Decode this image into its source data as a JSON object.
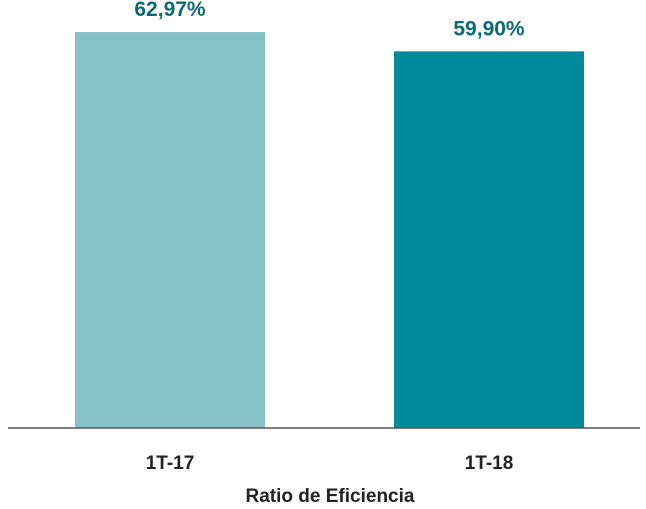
{
  "chart_data": {
    "type": "bar",
    "categories": [
      "1T-17",
      "1T-18"
    ],
    "values": [
      62.97,
      59.9
    ],
    "data_labels": [
      "62,97%",
      "59,90%"
    ],
    "xlabel": "Ratio de Eficiencia",
    "ylim": [
      0,
      66
    ],
    "grid": false,
    "legend": "none",
    "colors": {
      "bars": [
        "#85C2C9",
        "#008A9A"
      ],
      "labels": "#0B6A73",
      "axis": "#555555",
      "text": "#222222"
    }
  }
}
